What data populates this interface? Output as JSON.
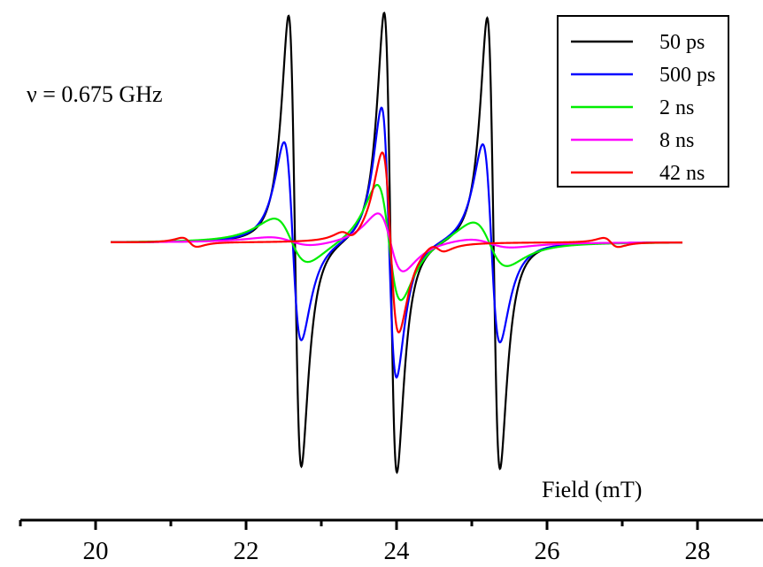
{
  "chart_data": {
    "type": "line",
    "annotation": "ν = 0.675 GHz",
    "xlabel": "Field (mT)",
    "ylabel": "",
    "xlim": [
      19,
      29
    ],
    "x_ticks": [
      20,
      22,
      24,
      26,
      28
    ],
    "grid": false,
    "legend_position": "top-right",
    "series": [
      {
        "name": "50 ps",
        "color": "#000000",
        "peaks": [
          {
            "center": 22.65,
            "amplitude": 1.0,
            "width": 0.085
          },
          {
            "center": 23.92,
            "amplitude": 1.02,
            "width": 0.085
          },
          {
            "center": 25.29,
            "amplitude": 1.0,
            "width": 0.085
          }
        ]
      },
      {
        "name": "500 ps",
        "color": "#0000ff",
        "peaks": [
          {
            "center": 22.62,
            "amplitude": 0.44,
            "width": 0.115
          },
          {
            "center": 23.9,
            "amplitude": 0.6,
            "width": 0.1
          },
          {
            "center": 25.26,
            "amplitude": 0.44,
            "width": 0.115
          }
        ]
      },
      {
        "name": "2 ns",
        "color": "#00ee00",
        "peaks": [
          {
            "center": 22.6,
            "amplitude": 0.1,
            "width": 0.23
          },
          {
            "center": 23.9,
            "amplitude": 0.26,
            "width": 0.16
          },
          {
            "center": 25.24,
            "amplitude": 0.1,
            "width": 0.23
          }
        ]
      },
      {
        "name": "8 ns",
        "color": "#ff00ff",
        "peaks": [
          {
            "center": 22.6,
            "amplitude": 0.02,
            "width": 0.3
          },
          {
            "center": 23.92,
            "amplitude": 0.13,
            "width": 0.17
          },
          {
            "center": 25.24,
            "amplitude": 0.02,
            "width": 0.3
          }
        ]
      },
      {
        "name": "42 ns",
        "color": "#ff0000",
        "peaks": [
          {
            "center": 23.92,
            "amplitude": 0.4,
            "width": 0.11
          },
          {
            "center": 21.25,
            "amplitude": 0.02,
            "width": 0.1
          },
          {
            "center": 23.35,
            "amplitude": 0.02,
            "width": 0.1
          },
          {
            "center": 24.55,
            "amplitude": 0.02,
            "width": 0.1
          },
          {
            "center": 26.85,
            "amplitude": 0.02,
            "width": 0.1
          }
        ]
      }
    ]
  }
}
